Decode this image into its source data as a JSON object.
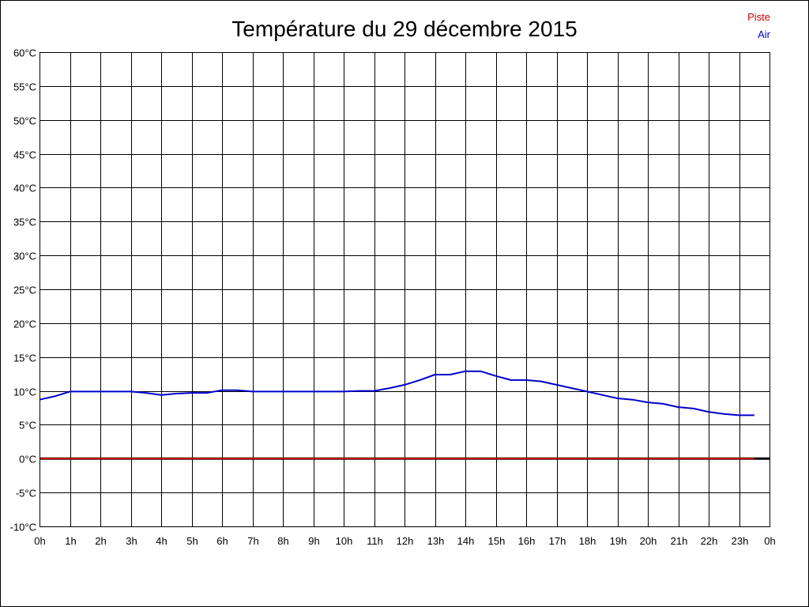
{
  "chart_data": {
    "type": "line",
    "title": "Température du 29 décembre 2015",
    "xlabel": "",
    "ylabel": "",
    "y_unit": "°C",
    "x_ticks": [
      "0h",
      "1h",
      "2h",
      "3h",
      "4h",
      "5h",
      "6h",
      "7h",
      "8h",
      "9h",
      "10h",
      "11h",
      "12h",
      "13h",
      "14h",
      "15h",
      "16h",
      "17h",
      "18h",
      "19h",
      "20h",
      "21h",
      "22h",
      "23h",
      "0h"
    ],
    "y_ticks": [
      "60°C",
      "55°C",
      "50°C",
      "45°C",
      "40°C",
      "35°C",
      "30°C",
      "25°C",
      "20°C",
      "15°C",
      "10°C",
      "5°C",
      "0°C",
      "-5°C",
      "-10°C"
    ],
    "xlim": [
      0,
      24
    ],
    "ylim": [
      -10,
      60
    ],
    "grid": true,
    "legend_position": "top-right",
    "series": [
      {
        "name": "Piste",
        "color": "#cc0000",
        "x": [
          0,
          23.5
        ],
        "y": [
          0,
          0
        ]
      },
      {
        "name": "Air",
        "color": "#0000cc",
        "x": [
          0,
          0.5,
          1,
          1.5,
          2,
          2.5,
          3,
          3.5,
          4,
          4.5,
          5,
          5.5,
          6,
          6.5,
          7,
          7.5,
          8,
          8.5,
          9,
          9.5,
          10,
          10.5,
          11,
          11.5,
          12,
          12.5,
          13,
          13.5,
          14,
          14.5,
          15,
          15.5,
          16,
          16.5,
          17,
          17.5,
          18,
          18.5,
          19,
          19.5,
          20,
          20.5,
          21,
          21.5,
          22,
          22.5,
          23,
          23.5
        ],
        "y": [
          8.7,
          9.2,
          9.9,
          9.9,
          9.9,
          9.9,
          9.9,
          9.7,
          9.4,
          9.6,
          9.7,
          9.7,
          10.1,
          10.1,
          9.9,
          9.9,
          9.9,
          9.9,
          9.9,
          9.9,
          9.9,
          10.0,
          10.0,
          10.4,
          10.9,
          11.6,
          12.4,
          12.4,
          12.9,
          12.9,
          12.2,
          11.6,
          11.6,
          11.4,
          10.9,
          10.4,
          9.9,
          9.4,
          8.9,
          8.7,
          8.3,
          8.1,
          7.6,
          7.4,
          6.9,
          6.6,
          6.4,
          6.4
        ]
      }
    ]
  }
}
